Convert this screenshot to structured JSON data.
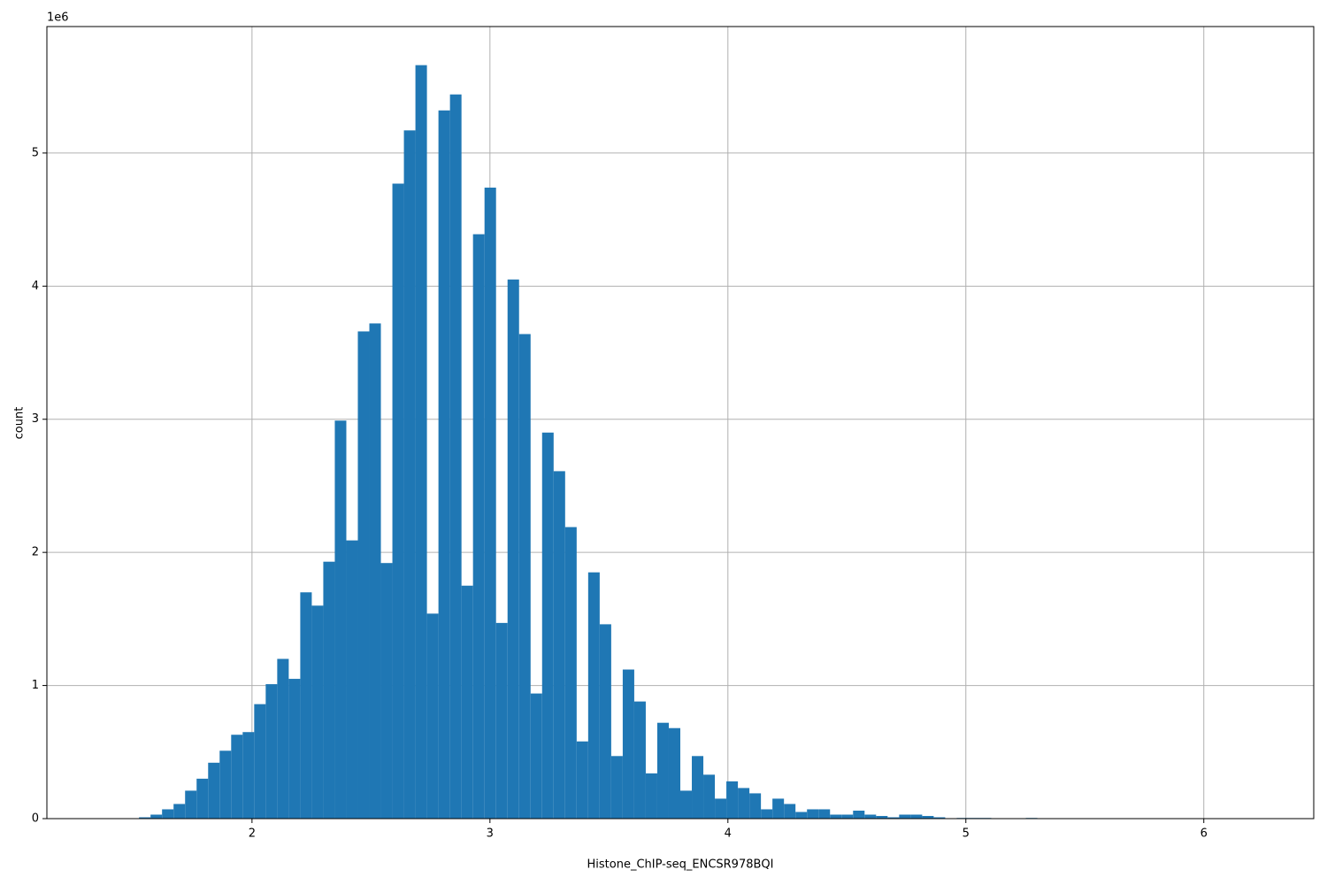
{
  "chart_data": {
    "type": "histogram",
    "x_label": "Histone_ChIP-seq_ENCSR978BQI",
    "y_label": "count",
    "y_offset_label": "1e6",
    "color": "#1f77b4",
    "grid": true,
    "xlim": [
      1.138,
      6.462
    ],
    "ylim": [
      0,
      5.95
    ],
    "xticks": [
      2,
      3,
      4,
      5,
      6
    ],
    "yticks": [
      0,
      1,
      2,
      3,
      4,
      5
    ],
    "bins": [
      1.38,
      1.4284,
      1.4768,
      1.5252,
      1.5736,
      1.622,
      1.6704,
      1.7188,
      1.7672,
      1.8156,
      1.864,
      1.9124,
      1.9608,
      2.0092,
      2.0576,
      2.106,
      2.1544,
      2.2028,
      2.2512,
      2.2996,
      2.348,
      2.3964,
      2.4448,
      2.4932,
      2.5416,
      2.59,
      2.6384,
      2.6868,
      2.7352,
      2.7836,
      2.832,
      2.8804,
      2.9288,
      2.9772,
      3.0256,
      3.074,
      3.1224,
      3.1708,
      3.2192,
      3.2676,
      3.316,
      3.3644,
      3.4128,
      3.4612,
      3.5096,
      3.558,
      3.6064,
      3.6548,
      3.7032,
      3.7516,
      3.8,
      3.8484,
      3.8968,
      3.9452,
      3.9936,
      4.042,
      4.0904,
      4.1388,
      4.1872,
      4.2356,
      4.284,
      4.3324,
      4.3808,
      4.4292,
      4.4776,
      4.526,
      4.5744,
      4.6228,
      4.6712,
      4.7196,
      4.768,
      4.8164,
      4.8648,
      4.9132,
      4.9616,
      5.01,
      5.0584,
      5.1068,
      5.1552,
      5.2036,
      5.252,
      5.3004,
      5.3488,
      5.3972,
      5.4456,
      5.494,
      5.5424,
      5.5908,
      5.6392,
      5.6876,
      5.736,
      5.7844,
      5.8328,
      5.8812,
      5.9296,
      5.978,
      6.0264,
      6.0748,
      6.1232,
      6.1716,
      6.22
    ],
    "values": [
      0,
      0,
      0,
      0.01,
      0.03,
      0.07,
      0.11,
      0.21,
      0.3,
      0.42,
      0.51,
      0.63,
      0.65,
      0.86,
      1.01,
      1.2,
      1.05,
      1.7,
      1.6,
      1.93,
      2.99,
      2.09,
      3.66,
      3.72,
      1.92,
      4.77,
      5.17,
      5.66,
      1.54,
      5.32,
      5.44,
      1.75,
      4.39,
      4.74,
      1.47,
      4.05,
      3.64,
      0.94,
      2.9,
      2.61,
      2.19,
      0.58,
      1.85,
      1.46,
      0.47,
      1.12,
      0.88,
      0.34,
      0.72,
      0.68,
      0.21,
      0.47,
      0.33,
      0.15,
      0.28,
      0.23,
      0.19,
      0.07,
      0.15,
      0.11,
      0.05,
      0.07,
      0.07,
      0.03,
      0.03,
      0.06,
      0.03,
      0.02,
      0.01,
      0.03,
      0.03,
      0.02,
      0.01,
      0,
      0.005,
      0.005,
      0.005,
      0,
      0,
      0,
      0.005,
      0,
      0,
      0,
      0,
      0,
      0,
      0,
      0,
      0,
      0,
      0,
      0,
      0,
      0,
      0,
      0,
      0,
      0,
      0,
      0.002
    ]
  }
}
